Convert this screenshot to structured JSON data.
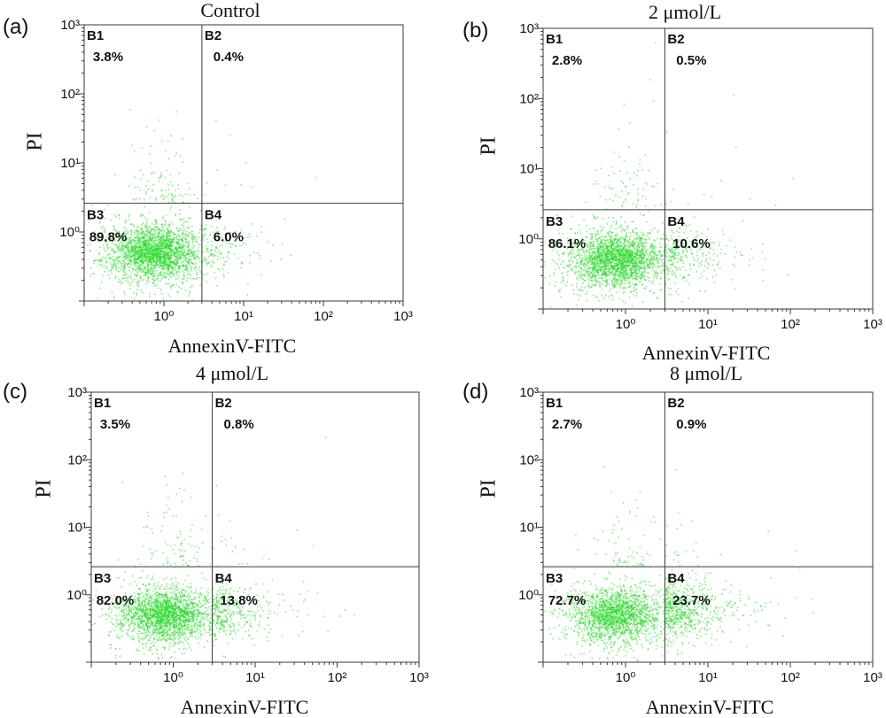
{
  "colors": {
    "points": "#26d926",
    "lines": "#383838"
  },
  "chart_data": [
    {
      "type": "scatter",
      "panel_label": "(a)",
      "title": "Control",
      "xlabel": "AnnexinV-FITC",
      "ylabel": "PI",
      "x_scale": "log",
      "y_scale": "log",
      "xlim": [
        0.1,
        1000
      ],
      "ylim": [
        0.1,
        1000
      ],
      "x_ticks": [
        1,
        10,
        100,
        1000
      ],
      "x_tick_labels": [
        "10⁰",
        "10¹",
        "10²",
        "10³"
      ],
      "y_ticks": [
        1,
        10,
        100,
        1000
      ],
      "y_tick_labels": [
        "10⁰",
        "10¹",
        "10²",
        "10³"
      ],
      "quadrant_gates": {
        "x": 3.0,
        "y": 2.6
      },
      "quadrants": [
        {
          "name": "B1",
          "value": "3.8%"
        },
        {
          "name": "B2",
          "value": "0.4%"
        },
        {
          "name": "B3",
          "value": "89.8%"
        },
        {
          "name": "B4",
          "value": "6.0%"
        }
      ],
      "grid": false,
      "legend": "none"
    },
    {
      "type": "scatter",
      "panel_label": "(b)",
      "title": "2 μmol/L",
      "xlabel": "AnnexinV-FITC",
      "ylabel": "PI",
      "x_scale": "log",
      "y_scale": "log",
      "xlim": [
        0.1,
        1000
      ],
      "ylim": [
        0.1,
        1000
      ],
      "x_ticks": [
        1,
        10,
        100,
        1000
      ],
      "x_tick_labels": [
        "10⁰",
        "10¹",
        "10²",
        "10³"
      ],
      "y_ticks": [
        1,
        10,
        100,
        1000
      ],
      "y_tick_labels": [
        "10⁰",
        "10¹",
        "10²",
        "10³"
      ],
      "quadrant_gates": {
        "x": 3.0,
        "y": 2.6
      },
      "quadrants": [
        {
          "name": "B1",
          "value": "2.8%"
        },
        {
          "name": "B2",
          "value": "0.5%"
        },
        {
          "name": "B3",
          "value": "86.1%"
        },
        {
          "name": "B4",
          "value": "10.6%"
        }
      ],
      "grid": false,
      "legend": "none"
    },
    {
      "type": "scatter",
      "panel_label": "(c)",
      "title": "4 μmol/L",
      "xlabel": "AnnexinV-FITC",
      "ylabel": "PI",
      "x_scale": "log",
      "y_scale": "log",
      "xlim": [
        0.1,
        1000
      ],
      "ylim": [
        0.1,
        1000
      ],
      "x_ticks": [
        1,
        10,
        100,
        1000
      ],
      "x_tick_labels": [
        "10⁰",
        "10¹",
        "10²",
        "10³"
      ],
      "y_ticks": [
        1,
        10,
        100,
        1000
      ],
      "y_tick_labels": [
        "10⁰",
        "10¹",
        "10²",
        "10³"
      ],
      "quadrant_gates": {
        "x": 3.0,
        "y": 2.6
      },
      "quadrants": [
        {
          "name": "B1",
          "value": "3.5%"
        },
        {
          "name": "B2",
          "value": "0.8%"
        },
        {
          "name": "B3",
          "value": "82.0%"
        },
        {
          "name": "B4",
          "value": "13.8%"
        }
      ],
      "grid": false,
      "legend": "none"
    },
    {
      "type": "scatter",
      "panel_label": "(d)",
      "title": "8 μmol/L",
      "xlabel": "AnnexinV-FITC",
      "ylabel": "PI",
      "x_scale": "log",
      "y_scale": "log",
      "xlim": [
        0.1,
        1000
      ],
      "ylim": [
        0.1,
        1000
      ],
      "x_ticks": [
        1,
        10,
        100,
        1000
      ],
      "x_tick_labels": [
        "10⁰",
        "10¹",
        "10²",
        "10³"
      ],
      "y_ticks": [
        1,
        10,
        100,
        1000
      ],
      "y_tick_labels": [
        "10⁰",
        "10¹",
        "10²",
        "10³"
      ],
      "quadrant_gates": {
        "x": 3.0,
        "y": 2.6
      },
      "quadrants": [
        {
          "name": "B1",
          "value": "2.7%"
        },
        {
          "name": "B2",
          "value": "0.9%"
        },
        {
          "name": "B3",
          "value": "72.7%"
        },
        {
          "name": "B4",
          "value": "23.7%"
        }
      ],
      "grid": false,
      "legend": "none"
    }
  ]
}
